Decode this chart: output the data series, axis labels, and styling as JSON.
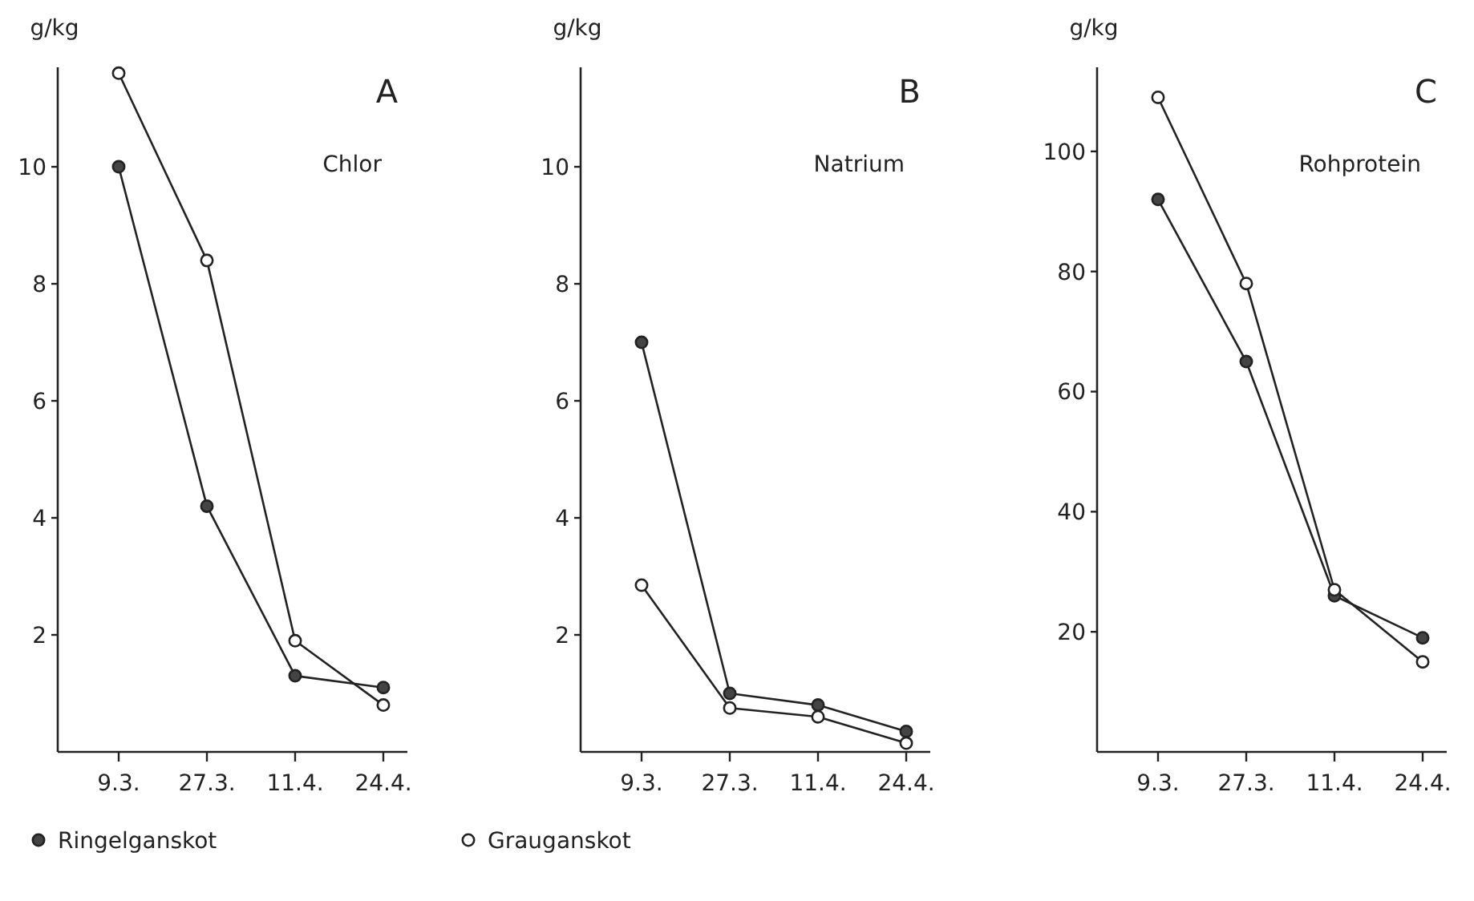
{
  "chart_data": [
    {
      "type": "line",
      "title": "A",
      "subtitle": "Chlor",
      "ylabel": "g/kg",
      "categories": [
        "9.3.",
        "27.3.",
        "11.4.",
        "24.4."
      ],
      "ylim": [
        0,
        11.7
      ],
      "yticks": [
        2,
        4,
        6,
        8,
        10
      ],
      "marker": "circle",
      "legend": "bottom",
      "grid": false,
      "series": [
        {
          "name": "Ringelganskot",
          "color": "#444444",
          "values": [
            10,
            4.2,
            1.3,
            1.1
          ]
        },
        {
          "name": "Grauganskot",
          "color": "#ffffff",
          "values": [
            11.6,
            8.4,
            1.9,
            0.8
          ]
        }
      ]
    },
    {
      "type": "line",
      "title": "B",
      "subtitle": "Natrium",
      "ylabel": "g/kg",
      "categories": [
        "9.3.",
        "27.3.",
        "11.4.",
        "24.4."
      ],
      "ylim": [
        0,
        11.7
      ],
      "yticks": [
        2,
        4,
        6,
        8,
        10
      ],
      "marker": "circle",
      "grid": false,
      "series": [
        {
          "color": "#444444",
          "values": [
            7.0,
            1.0,
            0.8,
            0.35
          ]
        },
        {
          "color": "#ffffff",
          "values": [
            2.85,
            0.75,
            0.6,
            0.15
          ]
        }
      ]
    },
    {
      "type": "line",
      "title": "C",
      "subtitle": "Rohprotein",
      "ylabel": "g/kg",
      "categories": [
        "9.3.",
        "27.3.",
        "11.4.",
        "24.4."
      ],
      "ylim": [
        0,
        114
      ],
      "yticks": [
        20,
        40,
        60,
        80,
        100
      ],
      "marker": "circle",
      "grid": false,
      "series": [
        {
          "color": "#444444",
          "values": [
            92,
            65,
            26,
            19
          ]
        },
        {
          "color": "#ffffff",
          "values": [
            109,
            78,
            27,
            15
          ]
        }
      ]
    }
  ]
}
